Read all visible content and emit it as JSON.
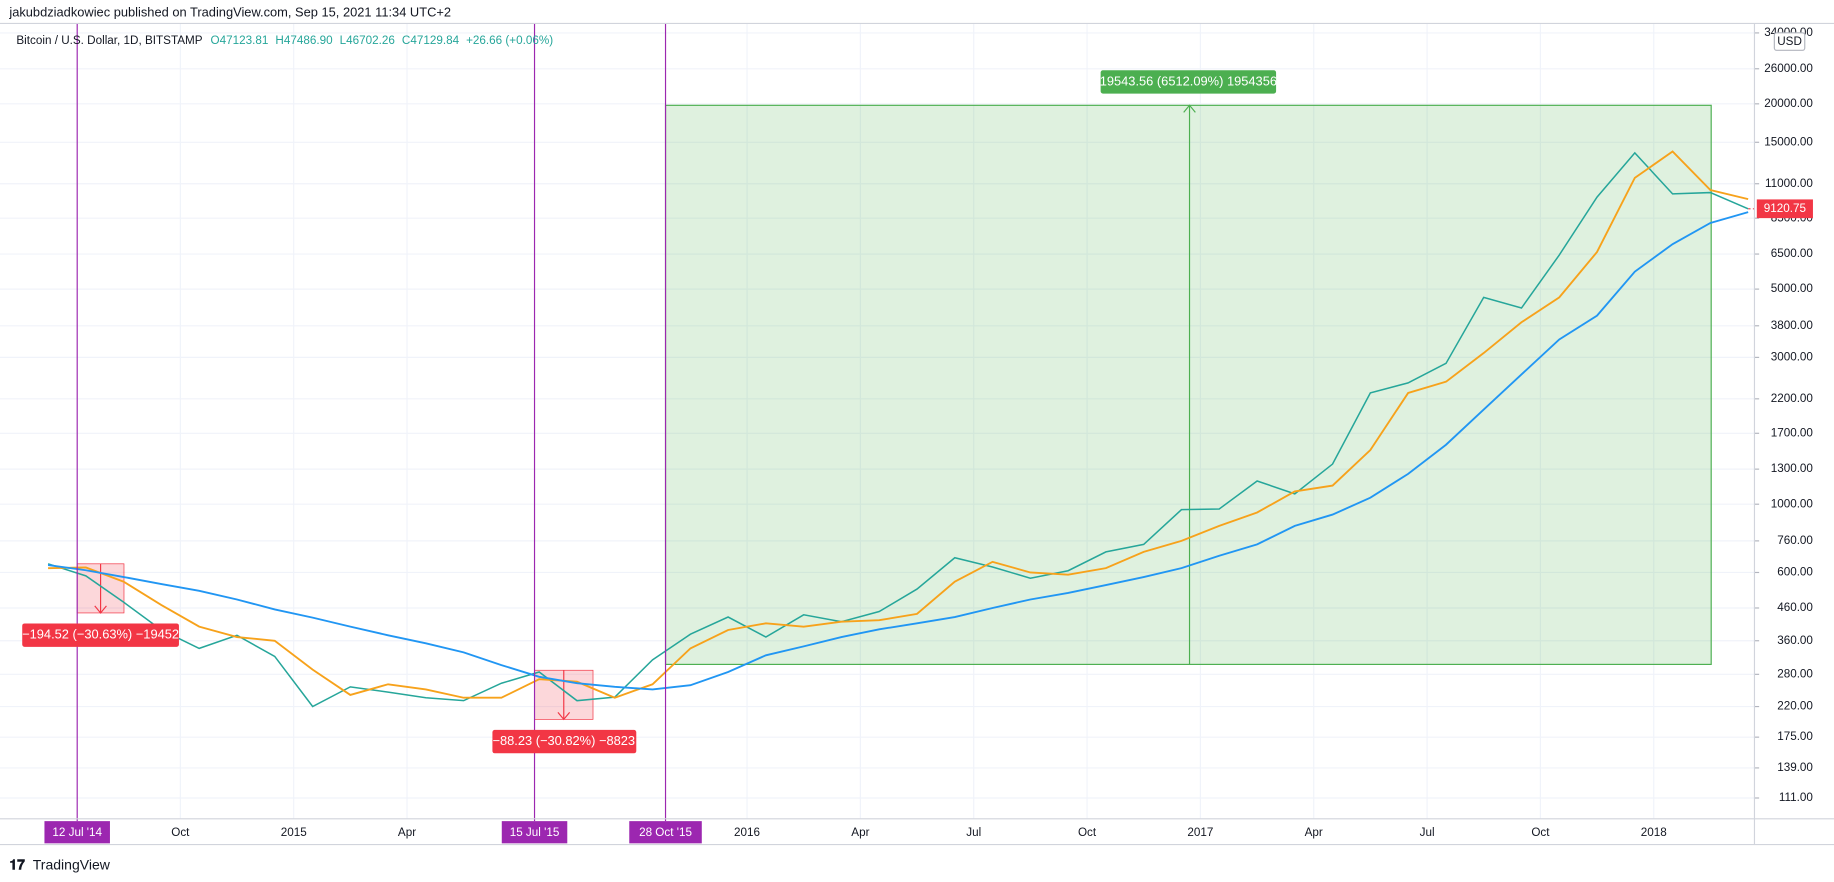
{
  "header": {
    "byline": "jakubdziadkowiec published on TradingView.com, Sep 15, 2021 11:34 UTC+2",
    "symbol": "Bitcoin / U.S. Dollar, 1D, BITSTAMP",
    "ohlc": [
      "O47123.81",
      "H47486.90",
      "L46702.26",
      "C47129.84",
      "+26.66 (+0.06%)"
    ]
  },
  "chart_data": {
    "type": "line",
    "log_scale": true,
    "grid": true,
    "currency": "USD",
    "categories": [
      null,
      null,
      null,
      null,
      "Oct",
      null,
      null,
      "2015",
      null,
      null,
      "Apr",
      null,
      null,
      null,
      null,
      null,
      null,
      null,
      null,
      "2016",
      null,
      null,
      "Apr",
      null,
      null,
      "Jul",
      null,
      null,
      "Oct",
      null,
      null,
      "2017",
      null,
      null,
      "Apr",
      null,
      null,
      "Jul",
      null,
      null,
      "Oct",
      null,
      null,
      "2018",
      null,
      null
    ],
    "series": [
      {
        "color": "#26a69a",
        "values": [
          640,
          585,
          480,
          390,
          340,
          375,
          320,
          220,
          255,
          245,
          235,
          230,
          262,
          285,
          230,
          236,
          312,
          378,
          430,
          370,
          437,
          415,
          448,
          530,
          670,
          625,
          575,
          608,
          700,
          740,
          960,
          965,
          1190,
          1080,
          1350,
          2300,
          2480,
          2870,
          4700,
          4340,
          6450,
          9950,
          13850,
          10200,
          10300,
          9120.75
        ]
      },
      {
        "color": "#f7a21b",
        "values": [
          620,
          623,
          560,
          470,
          400,
          370,
          360,
          290,
          240,
          260,
          250,
          235,
          235,
          270,
          265,
          235,
          260,
          340,
          390,
          410,
          400,
          415,
          420,
          440,
          560,
          650,
          600,
          590,
          620,
          700,
          760,
          850,
          940,
          1100,
          1150,
          1500,
          2300,
          2500,
          3100,
          3900,
          4700,
          6600,
          11500,
          14000,
          10500,
          9800
        ]
      },
      {
        "color": "#2196f3",
        "values": [
          634,
          610,
          580,
          550,
          523,
          490,
          455,
          428,
          400,
          375,
          353,
          330,
          300,
          275,
          262,
          255,
          250,
          258,
          285,
          323,
          345,
          370,
          392,
          410,
          430,
          460,
          490,
          515,
          546,
          580,
          620,
          680,
          740,
          850,
          925,
          1050,
          1255,
          1560,
          2030,
          2640,
          3430,
          4100,
          5700,
          7000,
          8200,
          8900
        ]
      }
    ],
    "ylim": [
      95,
      36500
    ],
    "yticks": [
      {
        "value": 111,
        "label": "111.00"
      },
      {
        "value": 139,
        "label": "139.00"
      },
      {
        "value": 175,
        "label": "175.00"
      },
      {
        "value": 220,
        "label": "220.00"
      },
      {
        "value": 280,
        "label": "280.00"
      },
      {
        "value": 360,
        "label": "360.00"
      },
      {
        "value": 460,
        "label": "460.00"
      },
      {
        "value": 600,
        "label": "600.00"
      },
      {
        "value": 760,
        "label": "760.00"
      },
      {
        "value": 1000,
        "label": "1000.00"
      },
      {
        "value": 1300,
        "label": "1300.00"
      },
      {
        "value": 1700,
        "label": "1700.00"
      },
      {
        "value": 2200,
        "label": "2200.00"
      },
      {
        "value": 3000,
        "label": "3000.00"
      },
      {
        "value": 3800,
        "label": "3800.00"
      },
      {
        "value": 5000,
        "label": "5000.00"
      },
      {
        "value": 6500,
        "label": "6500.00"
      },
      {
        "value": 8500,
        "label": "8500.00"
      },
      {
        "value": 11000,
        "label": "11000.00"
      },
      {
        "value": 15000,
        "label": "15000.00"
      },
      {
        "value": 20000,
        "label": "20000.00"
      },
      {
        "value": 26000,
        "label": "26000.00"
      },
      {
        "value": 34000,
        "label": "34000.00"
      }
    ],
    "markers": [
      "12 Jul '14",
      "15 Jul '15",
      "28 Oct '15"
    ],
    "annotations": [
      "19543.56 (6512.09%) 1954356",
      "−194.52 (−30.63%) −19452",
      "−88.23 (−30.82%) −8823"
    ]
  },
  "footer": "TradingView"
}
